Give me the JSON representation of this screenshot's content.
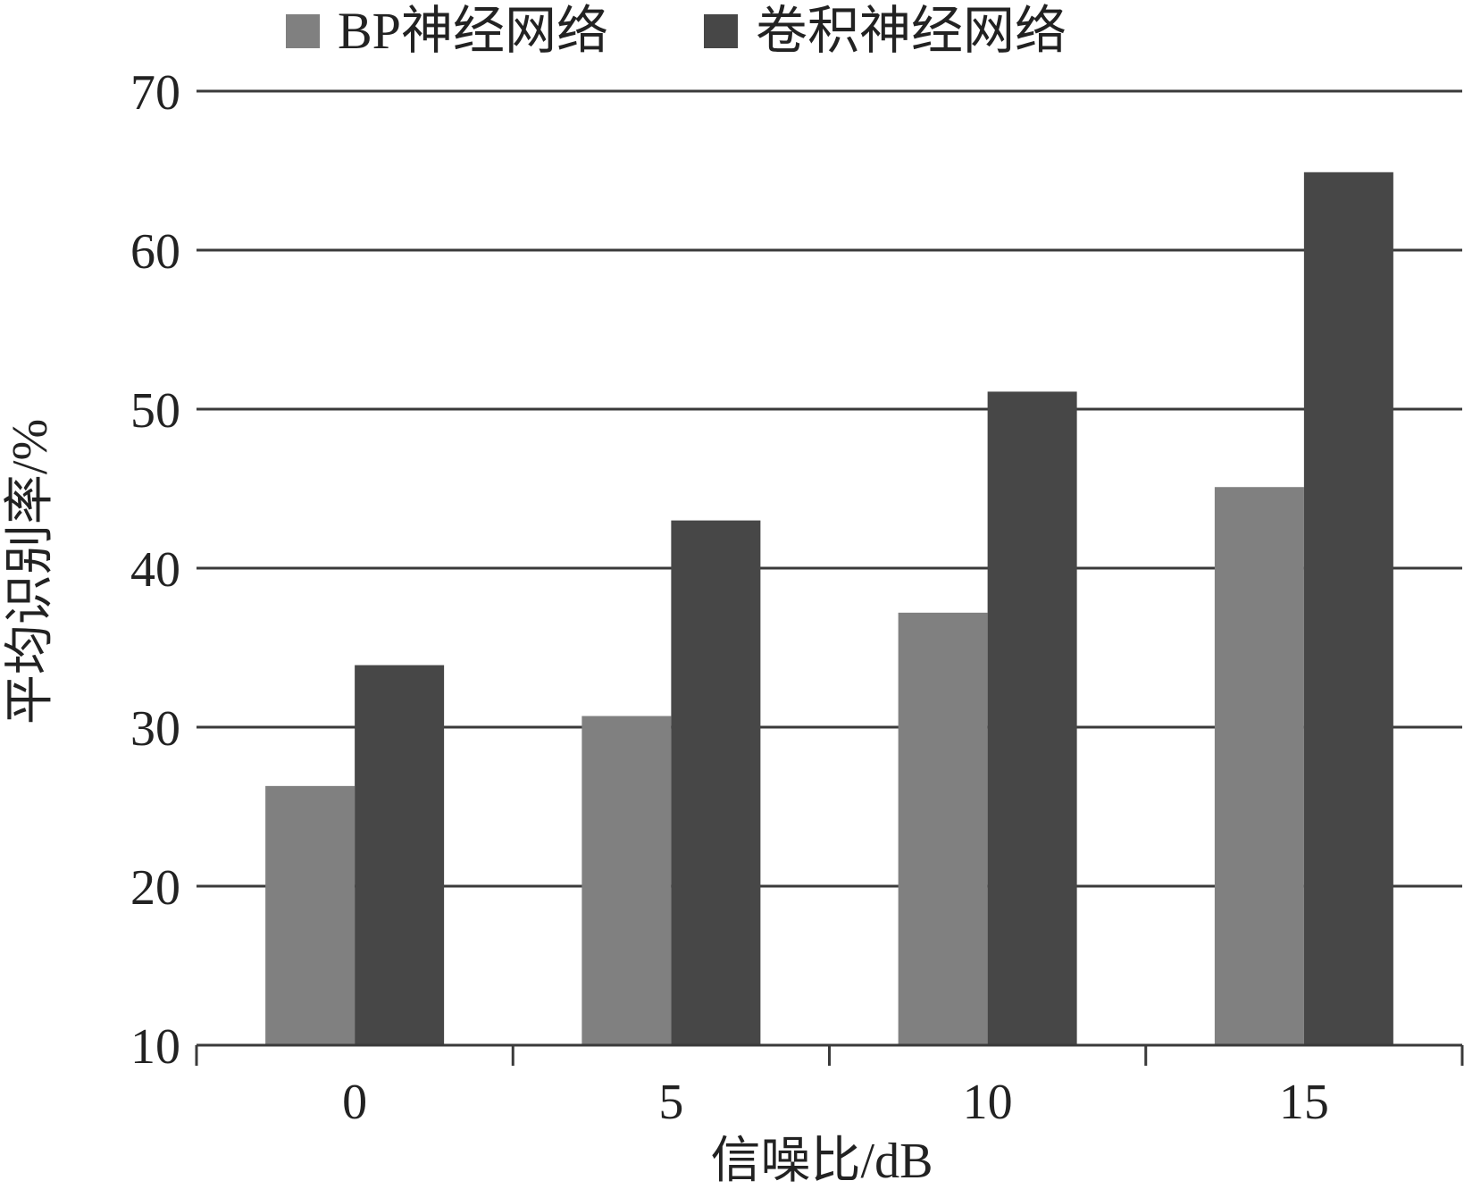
{
  "chart_data": {
    "type": "bar",
    "categories": [
      "0",
      "5",
      "10",
      "15"
    ],
    "series": [
      {
        "name": "BP神经网络",
        "values": [
          26.3,
          30.7,
          37.2,
          45.1
        ],
        "color": "#808080"
      },
      {
        "name": "卷积神经网络",
        "values": [
          33.9,
          43.0,
          51.1,
          64.9
        ],
        "color": "#474747"
      }
    ],
    "xlabel": "信噪比/dB",
    "ylabel": "平均识别率/%",
    "ylim": [
      10,
      70
    ],
    "yticks": [
      "10",
      "20",
      "30",
      "40",
      "50",
      "60",
      "70"
    ],
    "grid": true,
    "legend_position": "top"
  }
}
